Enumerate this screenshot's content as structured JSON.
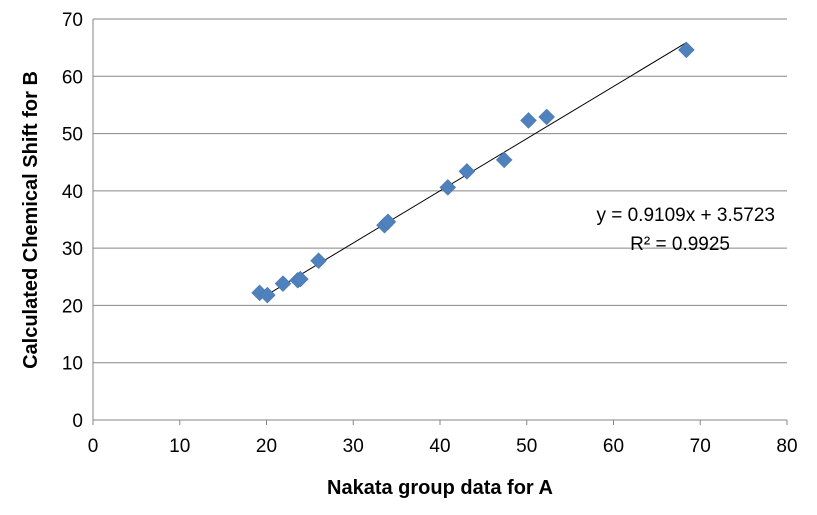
{
  "chart_data": {
    "type": "scatter",
    "title": "",
    "xlabel": "Nakata group data for A",
    "ylabel": "Calculated Chemical Shift for B",
    "xlim": [
      0,
      80
    ],
    "ylim": [
      0,
      70
    ],
    "xticks": [
      "0",
      "10",
      "20",
      "30",
      "40",
      "50",
      "60",
      "70",
      "80"
    ],
    "yticks": [
      "0",
      "10",
      "20",
      "30",
      "40",
      "50",
      "60",
      "70"
    ],
    "grid": "horizontal",
    "legend": "none",
    "marker_color": "#4f81bd",
    "series": [
      {
        "name": "data",
        "marker": "diamond",
        "x": [
          19.2,
          20.1,
          21.9,
          23.6,
          23.9,
          26.0,
          33.6,
          34.0,
          40.9,
          43.1,
          47.4,
          50.2,
          52.3,
          68.4
        ],
        "y": [
          22.2,
          21.8,
          23.8,
          24.4,
          24.6,
          27.8,
          34.0,
          34.6,
          40.6,
          43.4,
          45.4,
          52.3,
          52.9,
          64.6
        ]
      }
    ],
    "trendline": {
      "type": "linear",
      "slope": 0.9109,
      "intercept": 3.5723,
      "x_range": [
        19.2,
        68.4
      ],
      "equation": "y = 0.9109x + 3.5723",
      "r_squared": "R² = 0.9925"
    }
  }
}
